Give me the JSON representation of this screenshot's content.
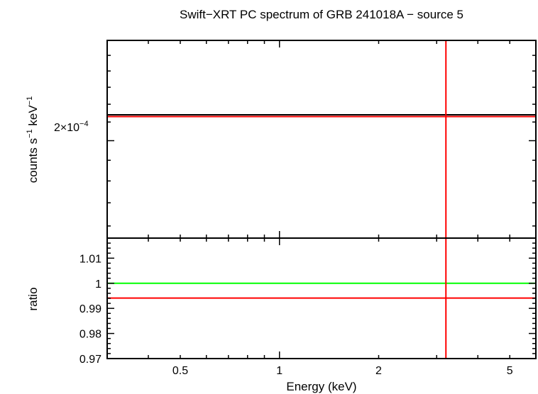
{
  "chart_data": [
    {
      "type": "line",
      "title": "Swift−XRT PC spectrum of GRB 241018A − source 5",
      "ylabel_main": "counts s",
      "ylabel_sup1": "−1",
      "ylabel_mid": " keV",
      "ylabel_sup2": "−1",
      "xscale": "log",
      "yscale": "log",
      "xlim": [
        0.3,
        6.0
      ],
      "ylim": [
        0.000155,
        0.00026
      ],
      "ytick_label": "2×10",
      "ytick_label_sup": "−4",
      "ytick_value": 0.0002,
      "series": [
        {
          "color": "#000000",
          "x": [
            0.3,
            6.0
          ],
          "y": [
            0.000214,
            0.000214
          ]
        },
        {
          "color": "#ff0000",
          "x": [
            0.3,
            6.0
          ],
          "y": [
            0.000213,
            0.000213
          ]
        }
      ],
      "vlines": [
        {
          "x": 3.2,
          "color": "#ff0000"
        }
      ]
    },
    {
      "type": "line",
      "ylabel": "ratio",
      "xlabel": "Energy (keV)",
      "xscale": "log",
      "xlim": [
        0.3,
        6.0
      ],
      "ylim": [
        0.97,
        1.018
      ],
      "yticks": [
        0.97,
        0.98,
        0.99,
        1,
        1.01
      ],
      "ytick_labels": [
        "0.97",
        "0.98",
        "0.99",
        "1",
        "1.01"
      ],
      "xticks": [
        0.5,
        1,
        2,
        5
      ],
      "xtick_labels": [
        "0.5",
        "1",
        "2",
        "5"
      ],
      "series": [
        {
          "color": "#00ff00",
          "x": [
            0.3,
            6.0
          ],
          "y": [
            1.0,
            1.0
          ]
        },
        {
          "color": "#ff0000",
          "x": [
            0.3,
            6.0
          ],
          "y": [
            0.9941,
            0.9941
          ]
        }
      ],
      "vlines": [
        {
          "x": 3.2,
          "color": "#ff0000"
        }
      ]
    }
  ]
}
